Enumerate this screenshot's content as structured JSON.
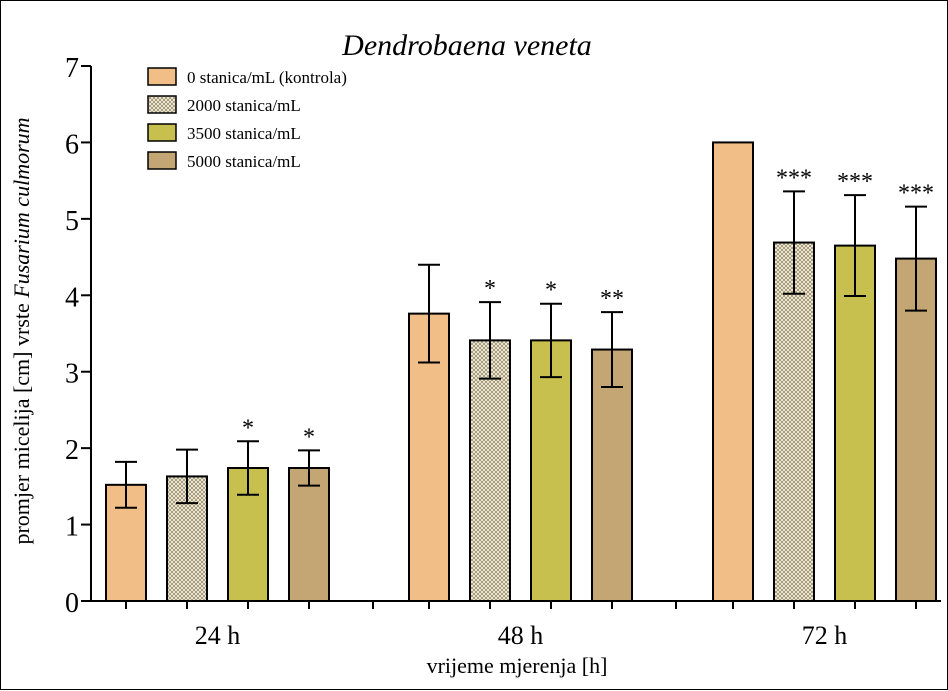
{
  "chart_data": {
    "type": "bar",
    "title": "Dendrobaena veneta",
    "xlabel": "vrijeme mjerenja [h]",
    "ylabel_prefix": "promjer micelija [cm] vrste ",
    "ylabel_species": "Fusarium culmorum",
    "categories": [
      "24 h",
      "48 h",
      "72 h"
    ],
    "ylim": [
      0,
      7
    ],
    "yticks": [
      "0",
      "1",
      "2",
      "3",
      "4",
      "5",
      "6",
      "7"
    ],
    "grid": false,
    "legend_position": "top-left",
    "series": [
      {
        "name": "0 stanica/mL (kontrola)",
        "color": "#F2BE88",
        "pattern": "solid",
        "values": [
          1.52,
          3.76,
          6.0
        ],
        "errors": [
          0.3,
          0.64,
          0.0
        ],
        "significance": [
          "",
          "",
          ""
        ]
      },
      {
        "name": "2000 stanica/mL",
        "color": "#D8D2BA",
        "pattern": "checkered",
        "values": [
          1.63,
          3.41,
          4.69
        ],
        "errors": [
          0.35,
          0.5,
          0.67
        ],
        "significance": [
          "",
          "*",
          "***"
        ]
      },
      {
        "name": "3500 stanica/mL",
        "color": "#C8C04E",
        "pattern": "solid",
        "values": [
          1.74,
          3.41,
          4.65
        ],
        "errors": [
          0.35,
          0.48,
          0.66
        ],
        "significance": [
          "*",
          "*",
          "***"
        ]
      },
      {
        "name": "5000 stanica/mL",
        "color": "#C4A574",
        "pattern": "solid",
        "values": [
          1.74,
          3.29,
          4.48
        ],
        "errors": [
          0.23,
          0.49,
          0.68
        ],
        "significance": [
          "*",
          "**",
          "***"
        ]
      }
    ]
  }
}
